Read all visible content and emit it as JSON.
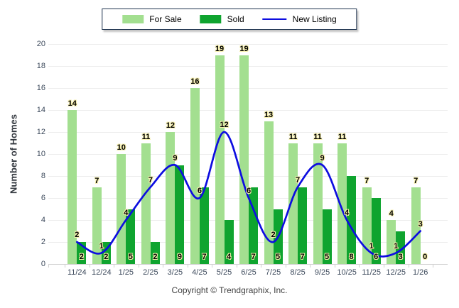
{
  "legend": {
    "items": [
      {
        "label": "For Sale",
        "type": "swatch",
        "color": "#a3df90"
      },
      {
        "label": "Sold",
        "type": "swatch",
        "color": "#0fa42f"
      },
      {
        "label": "New Listing",
        "type": "line",
        "color": "#0d0de0"
      }
    ]
  },
  "chart_data": {
    "type": "bar+line",
    "categories": [
      "11/24",
      "12/24",
      "1/25",
      "2/25",
      "3/25",
      "4/25",
      "5/25",
      "6/25",
      "7/25",
      "8/25",
      "9/25",
      "10/25",
      "11/25",
      "12/25",
      "1/26"
    ],
    "series": [
      {
        "name": "For Sale",
        "type": "bar",
        "color": "#a3df90",
        "values": [
          14,
          7,
          10,
          11,
          12,
          16,
          19,
          19,
          13,
          11,
          11,
          11,
          7,
          4,
          7
        ]
      },
      {
        "name": "Sold",
        "type": "bar",
        "color": "#0fa42f",
        "values": [
          2,
          2,
          5,
          2,
          9,
          7,
          4,
          7,
          5,
          7,
          5,
          8,
          6,
          3,
          0
        ]
      },
      {
        "name": "New Listing",
        "type": "line",
        "color": "#0d0de0",
        "values": [
          2,
          1,
          4,
          7,
          9,
          6,
          12,
          6,
          2,
          7,
          9,
          4,
          1,
          1,
          3
        ]
      }
    ],
    "title": "",
    "xlabel": "",
    "ylabel": "Number of Homes",
    "ylim": [
      0,
      20
    ],
    "ytick_step": 2,
    "grid": true,
    "legend_position": "top-center",
    "grid_color": "#ececec",
    "axis_color": "#d2d2d2",
    "label_halo_color": "#f6efad"
  },
  "footer": {
    "copyright": "Copyright © Trendgraphix, Inc."
  }
}
